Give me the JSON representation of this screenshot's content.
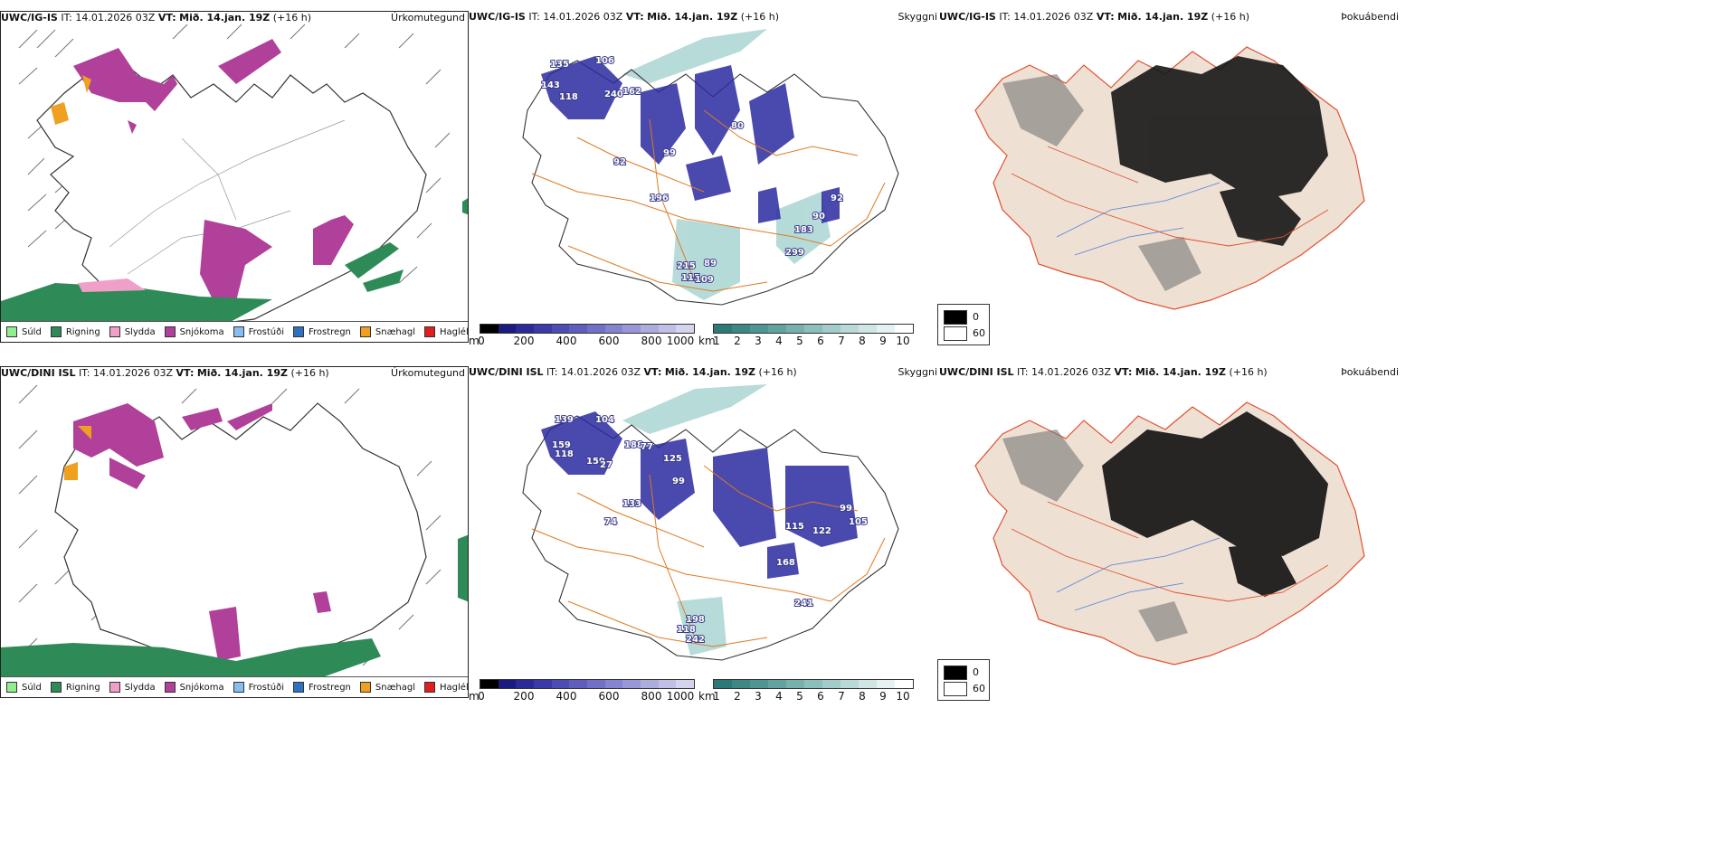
{
  "rows": [
    {
      "model": "UWC/IG-IS",
      "it_label": "IT:",
      "it_value": "14.01.2026 03Z",
      "vt_label": "VT:",
      "vt_value": "Mið. 14.jan. 19Z",
      "lead": "(+16 h)"
    },
    {
      "model": "UWC/DINI ISL",
      "it_label": "IT:",
      "it_value": "14.01.2026 03Z",
      "vt_label": "VT:",
      "vt_value": "Mið. 14.jan. 19Z",
      "lead": "(+16 h)"
    }
  ],
  "variables": {
    "precip_type": "Úrkomutegund",
    "visibility": "Skyggni",
    "fog": "Þokuábendi"
  },
  "precip_legend": [
    {
      "label": "Súld",
      "color": "#90ee90"
    },
    {
      "label": "Rigning",
      "color": "#2e8b57"
    },
    {
      "label": "Slydda",
      "color": "#f0a0c8"
    },
    {
      "label": "Snjókoma",
      "color": "#b0409a"
    },
    {
      "label": "Frostúði",
      "color": "#87bdf0"
    },
    {
      "label": "Frostregn",
      "color": "#3070c0"
    },
    {
      "label": "Snæhagl",
      "color": "#f0a020"
    },
    {
      "label": "Haglél",
      "color": "#e02020"
    }
  ],
  "ceiling_bar": {
    "unit": "m",
    "ticks": [
      "0",
      "200",
      "400",
      "600",
      "800",
      "1000"
    ],
    "colors": [
      "#000000",
      "#1a1a80",
      "#2a2a9a",
      "#3a3aa8",
      "#4c4cb4",
      "#5e5ebe",
      "#7070c8",
      "#8484d0",
      "#9898d8",
      "#acacdf",
      "#c0c0e6",
      "#d4d4ee"
    ]
  },
  "visibility_bar": {
    "unit": "km",
    "ticks": [
      "1",
      "2",
      "3",
      "4",
      "5",
      "6",
      "7",
      "8",
      "9",
      "10"
    ],
    "colors": [
      "#2c7a78",
      "#3d8785",
      "#4f9593",
      "#62a3a0",
      "#76b1ae",
      "#8bbfbc",
      "#a1ccca",
      "#b8d9d7",
      "#cfe6e4",
      "#e6f2f1",
      "#ffffff"
    ]
  },
  "fog_legend": {
    "top": "0",
    "bottom": "60",
    "top_color": "#000000",
    "bottom_color": "#ffffff"
  },
  "map_labels": {
    "row1": [
      "135",
      "106",
      "143",
      "240",
      "162",
      "118",
      "92",
      "196",
      "99",
      "80",
      "215",
      "89",
      "115",
      "109",
      "299",
      "90",
      "92",
      "183"
    ],
    "row2": [
      "139",
      "104",
      "159",
      "188",
      "118",
      "159",
      "27",
      "77",
      "125",
      "99",
      "74",
      "168",
      "115",
      "122",
      "99",
      "105",
      "198",
      "118",
      "242",
      "241",
      "133"
    ]
  }
}
